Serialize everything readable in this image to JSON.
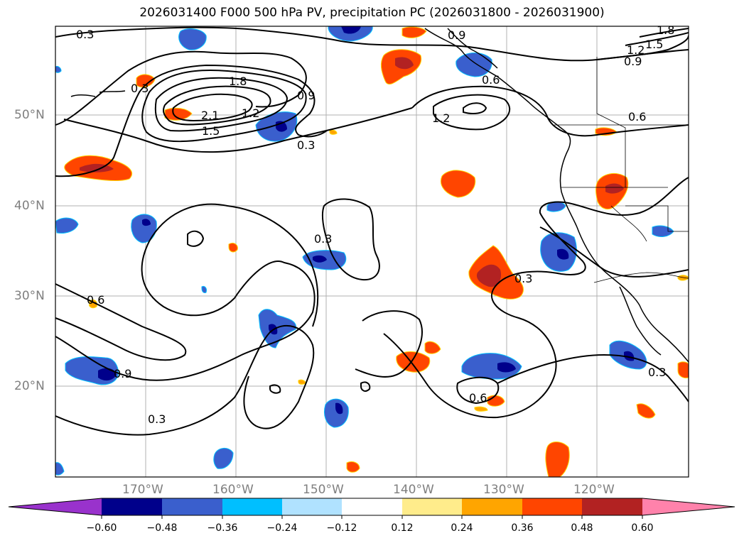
{
  "title": "2026031400 F000 500 hPa PV, precipitation PC (2026031800 - 2026031900)",
  "map": {
    "lat_labels": [
      "50°N",
      "40°N",
      "30°N",
      "20°N"
    ],
    "lon_labels": [
      "170°W",
      "160°W",
      "150°W",
      "140°W",
      "130°W",
      "120°W"
    ],
    "pv_contour_labels": [
      "0.3",
      "0.9",
      "1.8",
      "2.1",
      "1.5",
      "1.2",
      "0.3",
      "0.9",
      "1.2",
      "0.6",
      "1.8",
      "1.5",
      "1.2",
      "0.9",
      "0.6",
      "0.3",
      "0.3",
      "0.3",
      "0.6",
      "0.9",
      "0.3",
      "0.6",
      "0.3"
    ]
  },
  "colorbar": {
    "ticks": [
      "−0.60",
      "−0.48",
      "−0.36",
      "−0.24",
      "−0.12",
      "0.12",
      "0.24",
      "0.36",
      "0.48",
      "0.60"
    ],
    "colors": [
      "#9932cc",
      "#00008b",
      "#3a5fcd",
      "#00bfff",
      "#b0e2ff",
      "#ffffff",
      "#ffec8b",
      "#ffa500",
      "#ff4500",
      "#b22222",
      "#ff82ab"
    ]
  }
}
